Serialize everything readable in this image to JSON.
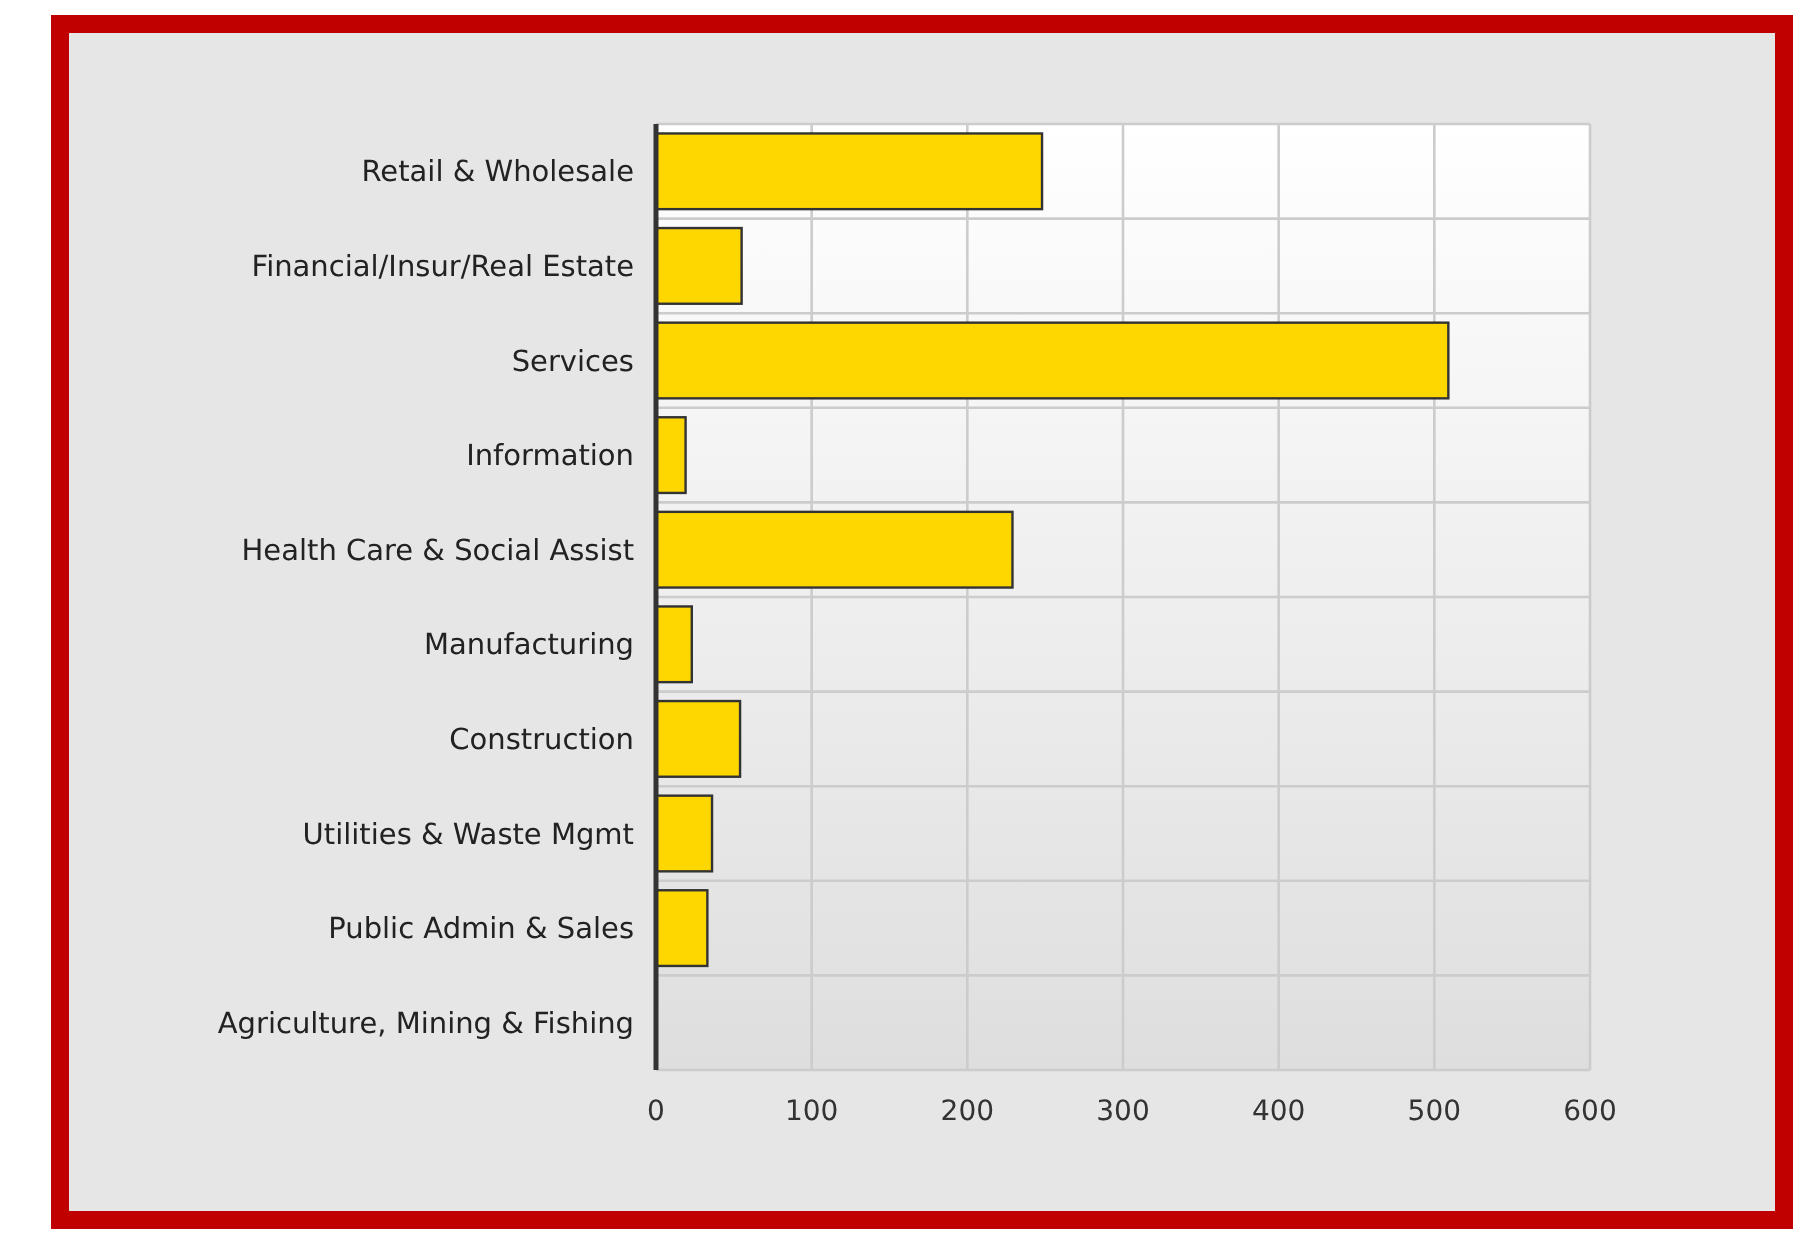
{
  "chart_data": {
    "type": "bar",
    "orientation": "horizontal",
    "categories": [
      "Retail & Wholesale",
      "Financial/Insur/Real Estate",
      "Services",
      "Information",
      "Health Care & Social Assist",
      "Manufacturing",
      "Construction",
      "Utilities & Waste Mgmt",
      "Public Admin & Sales",
      "Agriculture, Mining & Fishing"
    ],
    "values": [
      248,
      55,
      509,
      19,
      229,
      23,
      54,
      36,
      33,
      0
    ],
    "color": "#ffd700",
    "xlim": [
      0,
      600
    ],
    "xticks": [
      0,
      100,
      200,
      300,
      400,
      500,
      600
    ],
    "grid": true
  }
}
